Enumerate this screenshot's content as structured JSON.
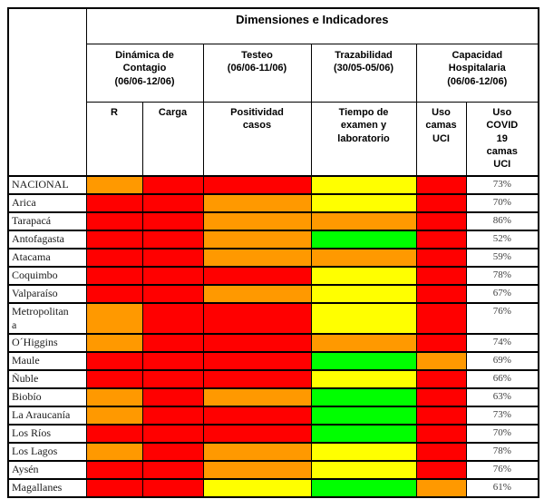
{
  "table": {
    "title": "Dimensiones e Indicadores",
    "groups": [
      {
        "label": "Dinámica de\nContagio\n(06/06-12/06)"
      },
      {
        "label": "Testeo\n(06/06-11/06)"
      },
      {
        "label": "Trazabilidad\n(30/05-05/06)"
      },
      {
        "label": "Capacidad\nHospitalaria\n(06/06-12/06)"
      }
    ],
    "columns": [
      "R",
      "Carga",
      "Positividad\ncasos",
      "Tiempo de\nexamen y\nlaboratorio",
      "Uso\ncamas\nUCI",
      "Uso\nCOVID\n19\ncamas\nUCI"
    ],
    "status_colors": {
      "red": "#FF0000",
      "orange": "#FF9900",
      "yellow": "#FFFF00",
      "green": "#00FF00"
    },
    "rows": [
      {
        "region": "NACIONAL",
        "indicators": [
          "orange",
          "red",
          "red",
          "yellow",
          "red"
        ],
        "uso_covid_uci": "73%"
      },
      {
        "region": "Arica",
        "indicators": [
          "red",
          "red",
          "orange",
          "yellow",
          "red"
        ],
        "uso_covid_uci": "70%"
      },
      {
        "region": "Tarapacá",
        "indicators": [
          "red",
          "red",
          "orange",
          "orange",
          "red"
        ],
        "uso_covid_uci": "86%"
      },
      {
        "region": "Antofagasta",
        "indicators": [
          "red",
          "red",
          "orange",
          "green",
          "red"
        ],
        "uso_covid_uci": "52%"
      },
      {
        "region": "Atacama",
        "indicators": [
          "red",
          "red",
          "orange",
          "orange",
          "red"
        ],
        "uso_covid_uci": "59%"
      },
      {
        "region": "Coquimbo",
        "indicators": [
          "red",
          "red",
          "red",
          "yellow",
          "red"
        ],
        "uso_covid_uci": "78%"
      },
      {
        "region": "Valparaíso",
        "indicators": [
          "red",
          "red",
          "orange",
          "yellow",
          "red"
        ],
        "uso_covid_uci": "67%"
      },
      {
        "region": "Metropolitana",
        "indicators": [
          "orange",
          "red",
          "red",
          "yellow",
          "red"
        ],
        "uso_covid_uci": "76%"
      },
      {
        "region": "O´Higgins",
        "indicators": [
          "orange",
          "red",
          "red",
          "orange",
          "red"
        ],
        "uso_covid_uci": "74%"
      },
      {
        "region": "Maule",
        "indicators": [
          "red",
          "red",
          "red",
          "green",
          "orange"
        ],
        "uso_covid_uci": "69%"
      },
      {
        "region": "Ñuble",
        "indicators": [
          "red",
          "red",
          "red",
          "yellow",
          "red"
        ],
        "uso_covid_uci": "66%"
      },
      {
        "region": "Biobío",
        "indicators": [
          "orange",
          "red",
          "orange",
          "green",
          "red"
        ],
        "uso_covid_uci": "63%"
      },
      {
        "region": "La Araucanía",
        "indicators": [
          "orange",
          "red",
          "red",
          "green",
          "red"
        ],
        "uso_covid_uci": "73%"
      },
      {
        "region": "Los Ríos",
        "indicators": [
          "red",
          "red",
          "red",
          "green",
          "red"
        ],
        "uso_covid_uci": "70%"
      },
      {
        "region": "Los Lagos",
        "indicators": [
          "orange",
          "red",
          "orange",
          "yellow",
          "red"
        ],
        "uso_covid_uci": "78%"
      },
      {
        "region": "Aysén",
        "indicators": [
          "red",
          "red",
          "orange",
          "yellow",
          "red"
        ],
        "uso_covid_uci": "76%"
      },
      {
        "region": "Magallanes",
        "indicators": [
          "red",
          "red",
          "yellow",
          "green",
          "orange"
        ],
        "uso_covid_uci": "61%"
      }
    ]
  }
}
